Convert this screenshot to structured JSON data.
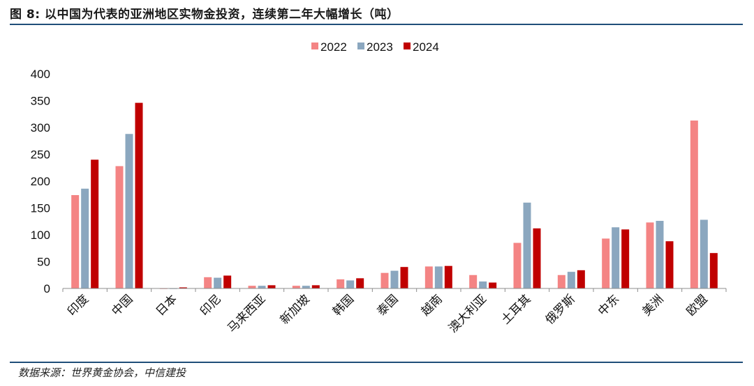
{
  "header": {
    "title": "图 8: 以中国为代表的亚洲地区实物金投资，连续第二年大幅增长（吨）",
    "source": "数据来源：世界黄金协会，中信建投"
  },
  "chart_data": {
    "type": "bar",
    "title": "图 8: 以中国为代表的亚洲地区实物金投资，连续第二年大幅增长（吨）",
    "xlabel": "",
    "ylabel": "",
    "ylim": [
      0,
      400
    ],
    "yticks": [
      0,
      50,
      100,
      150,
      200,
      250,
      300,
      350,
      400
    ],
    "legend_position": "top-center",
    "grid": false,
    "categories": [
      "印度",
      "中国",
      "日本",
      "印尼",
      "马来西亚",
      "新加坡",
      "韩国",
      "泰国",
      "越南",
      "澳大利亚",
      "土耳其",
      "俄罗斯",
      "中东",
      "美洲",
      "欧盟"
    ],
    "series": [
      {
        "name": "2022",
        "color": "#f48484",
        "values": [
          174,
          228,
          -1,
          21,
          5,
          5,
          17,
          29,
          41,
          25,
          85,
          25,
          93,
          123,
          313
        ]
      },
      {
        "name": "2023",
        "color": "#8ba7bf",
        "values": [
          186,
          288,
          -1,
          20,
          5,
          5,
          15,
          33,
          41,
          13,
          160,
          31,
          114,
          126,
          128
        ]
      },
      {
        "name": "2024",
        "color": "#c00000",
        "values": [
          240,
          346,
          2,
          24,
          6,
          6,
          19,
          40,
          42,
          11,
          112,
          34,
          110,
          88,
          66
        ]
      }
    ]
  }
}
